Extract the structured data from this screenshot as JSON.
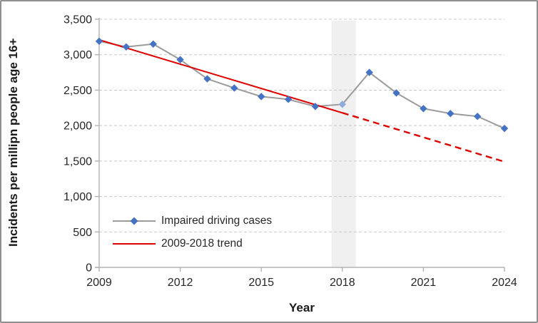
{
  "window": {
    "background": "#ffffff",
    "border_color": "#8f8f8f"
  },
  "chart_data": {
    "type": "line",
    "title": "",
    "xlabel": "Year",
    "ylabel": "Incidents per millipn people age 16+",
    "xlim": [
      2009,
      2024
    ],
    "ylim": [
      0,
      3500
    ],
    "x_ticks": [
      2009,
      2012,
      2015,
      2018,
      2021,
      2024
    ],
    "y_ticks": [
      0,
      500,
      1000,
      1500,
      2000,
      2500,
      3000,
      3500
    ],
    "y_tick_labels": [
      "0",
      "500",
      "1,000",
      "1,500",
      "2,000",
      "2,500",
      "3,000",
      "3,500"
    ],
    "grid": {
      "horizontal": true,
      "style": "dashed",
      "color": "#c8c8c8"
    },
    "axis_color": "#b3b3b3",
    "tick_label_color": "#262626",
    "highlight_band": {
      "x_start": 2017.6,
      "x_end": 2018.5,
      "color": "#f0f0f0"
    },
    "x": [
      2009,
      2010,
      2011,
      2012,
      2013,
      2014,
      2015,
      2016,
      2017,
      2018,
      2019,
      2020,
      2021,
      2022,
      2023,
      2024
    ],
    "series": [
      {
        "name": "Impaired driving cases",
        "type": "line-with-markers",
        "line_color": "#9b9b9b",
        "marker": "diamond",
        "marker_color": "#4472c4",
        "values": [
          3190,
          3110,
          3150,
          2930,
          2660,
          2530,
          2410,
          2370,
          2270,
          2300,
          2750,
          2460,
          2240,
          2170,
          2130,
          1960
        ],
        "highlight_point": {
          "x": 2018,
          "marker_color": "#8faadc"
        }
      },
      {
        "name": "2009-2018 trend",
        "type": "trend-line",
        "line_color": "#e00000",
        "solid_segment": {
          "x": [
            2009,
            2018
          ],
          "values": [
            3210,
            2180
          ]
        },
        "dashed_segment": {
          "x": [
            2018,
            2024
          ],
          "values": [
            2180,
            1490
          ]
        }
      }
    ],
    "legend": {
      "position": "lower-left-inside",
      "entries": [
        {
          "label": "Impaired driving cases",
          "swatch": "gray-line-blue-diamond"
        },
        {
          "label": "2009-2018 trend",
          "swatch": "red-line"
        }
      ]
    }
  }
}
